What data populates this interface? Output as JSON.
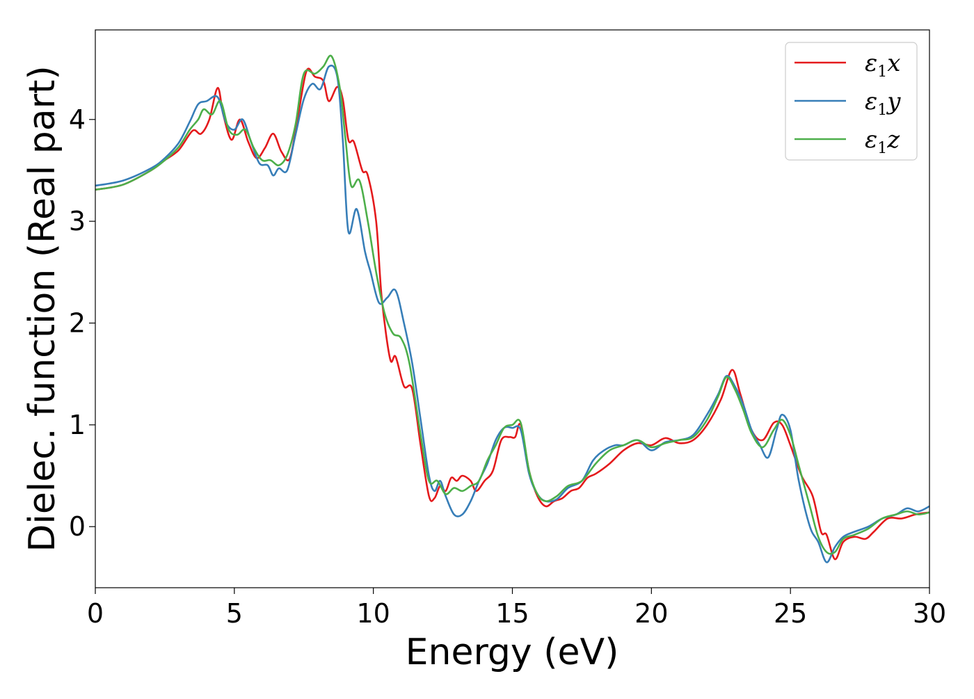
{
  "chart_data": {
    "type": "line",
    "title": "",
    "xlabel": "Energy (eV)",
    "ylabel": "Dielec. function (Real part)",
    "xlim": [
      0,
      30
    ],
    "ylim": [
      -0.6,
      4.88
    ],
    "xticks": [
      0,
      5,
      10,
      15,
      20,
      25,
      30
    ],
    "yticks": [
      0,
      1,
      2,
      3,
      4
    ],
    "grid": false,
    "legend_position": "top-right",
    "series": [
      {
        "name": "ε1x",
        "legend_main": "ε",
        "legend_sub": "1",
        "legend_suffix": "x",
        "color": "#e41a1c",
        "points": [
          [
            0,
            3.31
          ],
          [
            1,
            3.36
          ],
          [
            2,
            3.5
          ],
          [
            2.5,
            3.6
          ],
          [
            3,
            3.7
          ],
          [
            3.5,
            3.89
          ],
          [
            3.8,
            3.86
          ],
          [
            4.1,
            4.0
          ],
          [
            4.4,
            4.31
          ],
          [
            4.6,
            4.05
          ],
          [
            4.9,
            3.8
          ],
          [
            5.2,
            4.0
          ],
          [
            5.5,
            3.78
          ],
          [
            5.8,
            3.62
          ],
          [
            6.1,
            3.72
          ],
          [
            6.4,
            3.86
          ],
          [
            6.7,
            3.68
          ],
          [
            7.0,
            3.62
          ],
          [
            7.3,
            4.05
          ],
          [
            7.6,
            4.48
          ],
          [
            7.9,
            4.42
          ],
          [
            8.2,
            4.38
          ],
          [
            8.4,
            4.18
          ],
          [
            8.7,
            4.32
          ],
          [
            8.9,
            4.2
          ],
          [
            9.1,
            3.8
          ],
          [
            9.3,
            3.78
          ],
          [
            9.6,
            3.5
          ],
          [
            9.8,
            3.45
          ],
          [
            10.1,
            3.0
          ],
          [
            10.3,
            2.25
          ],
          [
            10.6,
            1.65
          ],
          [
            10.8,
            1.67
          ],
          [
            11.1,
            1.38
          ],
          [
            11.4,
            1.35
          ],
          [
            11.7,
            0.8
          ],
          [
            12.0,
            0.3
          ],
          [
            12.2,
            0.28
          ],
          [
            12.4,
            0.4
          ],
          [
            12.6,
            0.35
          ],
          [
            12.8,
            0.48
          ],
          [
            13.0,
            0.45
          ],
          [
            13.2,
            0.5
          ],
          [
            13.5,
            0.45
          ],
          [
            13.7,
            0.35
          ],
          [
            14.0,
            0.45
          ],
          [
            14.3,
            0.55
          ],
          [
            14.6,
            0.85
          ],
          [
            14.9,
            0.88
          ],
          [
            15.1,
            0.88
          ],
          [
            15.3,
            1.0
          ],
          [
            15.6,
            0.55
          ],
          [
            15.9,
            0.3
          ],
          [
            16.2,
            0.2
          ],
          [
            16.5,
            0.25
          ],
          [
            16.8,
            0.28
          ],
          [
            17.1,
            0.35
          ],
          [
            17.4,
            0.38
          ],
          [
            17.7,
            0.48
          ],
          [
            18.0,
            0.52
          ],
          [
            18.5,
            0.62
          ],
          [
            19.0,
            0.75
          ],
          [
            19.5,
            0.82
          ],
          [
            20.0,
            0.8
          ],
          [
            20.5,
            0.87
          ],
          [
            21.0,
            0.82
          ],
          [
            21.5,
            0.85
          ],
          [
            22.0,
            1.0
          ],
          [
            22.5,
            1.25
          ],
          [
            22.9,
            1.54
          ],
          [
            23.2,
            1.3
          ],
          [
            23.6,
            0.95
          ],
          [
            24.0,
            0.85
          ],
          [
            24.4,
            1.02
          ],
          [
            24.7,
            1.0
          ],
          [
            25.0,
            0.8
          ],
          [
            25.4,
            0.5
          ],
          [
            25.8,
            0.3
          ],
          [
            26.1,
            -0.05
          ],
          [
            26.3,
            -0.08
          ],
          [
            26.6,
            -0.32
          ],
          [
            26.9,
            -0.15
          ],
          [
            27.3,
            -0.1
          ],
          [
            27.7,
            -0.12
          ],
          [
            28.0,
            -0.05
          ],
          [
            28.5,
            0.08
          ],
          [
            29.0,
            0.08
          ],
          [
            29.5,
            0.12
          ],
          [
            30,
            0.14
          ]
        ]
      },
      {
        "name": "ε1y",
        "legend_main": "ε",
        "legend_sub": "1",
        "legend_suffix": "y",
        "color": "#377eb8",
        "points": [
          [
            0,
            3.35
          ],
          [
            1,
            3.4
          ],
          [
            2,
            3.52
          ],
          [
            2.5,
            3.62
          ],
          [
            3,
            3.77
          ],
          [
            3.4,
            3.98
          ],
          [
            3.7,
            4.15
          ],
          [
            4.0,
            4.18
          ],
          [
            4.4,
            4.22
          ],
          [
            4.7,
            3.97
          ],
          [
            5.0,
            3.9
          ],
          [
            5.3,
            4.0
          ],
          [
            5.6,
            3.78
          ],
          [
            5.9,
            3.57
          ],
          [
            6.2,
            3.55
          ],
          [
            6.4,
            3.45
          ],
          [
            6.6,
            3.52
          ],
          [
            6.9,
            3.5
          ],
          [
            7.2,
            3.85
          ],
          [
            7.5,
            4.2
          ],
          [
            7.8,
            4.35
          ],
          [
            8.1,
            4.3
          ],
          [
            8.4,
            4.52
          ],
          [
            8.7,
            4.42
          ],
          [
            8.9,
            3.8
          ],
          [
            9.1,
            2.9
          ],
          [
            9.4,
            3.12
          ],
          [
            9.7,
            2.7
          ],
          [
            9.9,
            2.5
          ],
          [
            10.2,
            2.2
          ],
          [
            10.5,
            2.25
          ],
          [
            10.8,
            2.32
          ],
          [
            11.1,
            2.0
          ],
          [
            11.4,
            1.6
          ],
          [
            11.7,
            1.05
          ],
          [
            12.0,
            0.5
          ],
          [
            12.2,
            0.35
          ],
          [
            12.4,
            0.45
          ],
          [
            12.6,
            0.3
          ],
          [
            12.9,
            0.12
          ],
          [
            13.2,
            0.12
          ],
          [
            13.5,
            0.25
          ],
          [
            13.8,
            0.45
          ],
          [
            14.1,
            0.62
          ],
          [
            14.4,
            0.85
          ],
          [
            14.7,
            0.97
          ],
          [
            15.0,
            0.97
          ],
          [
            15.3,
            0.95
          ],
          [
            15.6,
            0.52
          ],
          [
            15.9,
            0.32
          ],
          [
            16.2,
            0.25
          ],
          [
            16.6,
            0.27
          ],
          [
            17.0,
            0.38
          ],
          [
            17.5,
            0.45
          ],
          [
            17.9,
            0.65
          ],
          [
            18.3,
            0.75
          ],
          [
            18.7,
            0.8
          ],
          [
            19.0,
            0.8
          ],
          [
            19.5,
            0.85
          ],
          [
            20.0,
            0.75
          ],
          [
            20.5,
            0.83
          ],
          [
            21.0,
            0.85
          ],
          [
            21.5,
            0.9
          ],
          [
            22.0,
            1.1
          ],
          [
            22.4,
            1.3
          ],
          [
            22.7,
            1.48
          ],
          [
            23.0,
            1.38
          ],
          [
            23.3,
            1.2
          ],
          [
            23.6,
            0.95
          ],
          [
            23.9,
            0.8
          ],
          [
            24.2,
            0.68
          ],
          [
            24.5,
            0.95
          ],
          [
            24.7,
            1.1
          ],
          [
            25.0,
            0.95
          ],
          [
            25.3,
            0.45
          ],
          [
            25.7,
            0.0
          ],
          [
            26.0,
            -0.15
          ],
          [
            26.3,
            -0.35
          ],
          [
            26.6,
            -0.2
          ],
          [
            26.9,
            -0.1
          ],
          [
            27.3,
            -0.05
          ],
          [
            27.8,
            0.0
          ],
          [
            28.3,
            0.08
          ],
          [
            28.8,
            0.12
          ],
          [
            29.2,
            0.18
          ],
          [
            29.6,
            0.15
          ],
          [
            30,
            0.2
          ]
        ]
      },
      {
        "name": "ε1z",
        "legend_main": "ε",
        "legend_sub": "1",
        "legend_suffix": "z",
        "color": "#4daf4a",
        "points": [
          [
            0,
            3.31
          ],
          [
            1,
            3.36
          ],
          [
            2,
            3.5
          ],
          [
            2.5,
            3.6
          ],
          [
            3,
            3.73
          ],
          [
            3.4,
            3.9
          ],
          [
            3.7,
            4.0
          ],
          [
            3.9,
            4.1
          ],
          [
            4.2,
            4.05
          ],
          [
            4.5,
            4.18
          ],
          [
            4.8,
            3.9
          ],
          [
            5.1,
            3.85
          ],
          [
            5.4,
            3.9
          ],
          [
            5.7,
            3.72
          ],
          [
            6.0,
            3.6
          ],
          [
            6.3,
            3.6
          ],
          [
            6.6,
            3.55
          ],
          [
            6.9,
            3.65
          ],
          [
            7.2,
            3.95
          ],
          [
            7.5,
            4.45
          ],
          [
            7.9,
            4.45
          ],
          [
            8.2,
            4.52
          ],
          [
            8.5,
            4.62
          ],
          [
            8.8,
            4.3
          ],
          [
            9.0,
            3.8
          ],
          [
            9.2,
            3.35
          ],
          [
            9.5,
            3.4
          ],
          [
            9.8,
            3.0
          ],
          [
            10.1,
            2.5
          ],
          [
            10.4,
            2.1
          ],
          [
            10.7,
            1.9
          ],
          [
            11.0,
            1.85
          ],
          [
            11.3,
            1.6
          ],
          [
            11.7,
            0.9
          ],
          [
            12.0,
            0.45
          ],
          [
            12.3,
            0.45
          ],
          [
            12.6,
            0.32
          ],
          [
            12.9,
            0.38
          ],
          [
            13.2,
            0.35
          ],
          [
            13.5,
            0.4
          ],
          [
            13.8,
            0.45
          ],
          [
            14.1,
            0.65
          ],
          [
            14.4,
            0.8
          ],
          [
            14.7,
            0.97
          ],
          [
            15.0,
            1.0
          ],
          [
            15.3,
            1.02
          ],
          [
            15.6,
            0.55
          ],
          [
            15.9,
            0.32
          ],
          [
            16.2,
            0.25
          ],
          [
            16.6,
            0.3
          ],
          [
            17.0,
            0.4
          ],
          [
            17.5,
            0.45
          ],
          [
            18.0,
            0.62
          ],
          [
            18.5,
            0.75
          ],
          [
            19.0,
            0.8
          ],
          [
            19.5,
            0.85
          ],
          [
            20.0,
            0.78
          ],
          [
            20.5,
            0.82
          ],
          [
            21.0,
            0.85
          ],
          [
            21.5,
            0.88
          ],
          [
            22.0,
            1.05
          ],
          [
            22.4,
            1.28
          ],
          [
            22.7,
            1.47
          ],
          [
            23.0,
            1.35
          ],
          [
            23.3,
            1.15
          ],
          [
            23.6,
            0.92
          ],
          [
            24.0,
            0.78
          ],
          [
            24.4,
            0.95
          ],
          [
            24.7,
            1.05
          ],
          [
            25.0,
            0.9
          ],
          [
            25.3,
            0.6
          ],
          [
            25.7,
            0.2
          ],
          [
            26.0,
            -0.1
          ],
          [
            26.3,
            -0.25
          ],
          [
            26.6,
            -0.25
          ],
          [
            26.9,
            -0.12
          ],
          [
            27.3,
            -0.08
          ],
          [
            27.8,
            -0.02
          ],
          [
            28.3,
            0.08
          ],
          [
            28.8,
            0.12
          ],
          [
            29.2,
            0.15
          ],
          [
            29.6,
            0.12
          ],
          [
            30,
            0.14
          ]
        ]
      }
    ]
  }
}
